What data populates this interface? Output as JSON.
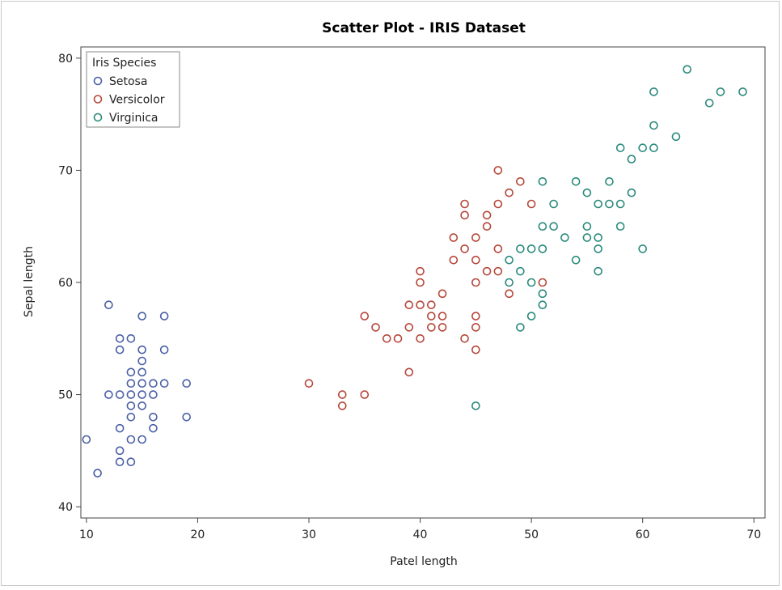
{
  "chart_data": {
    "type": "scatter",
    "title": "Scatter Plot - IRIS Dataset",
    "xlabel": "Patel length",
    "ylabel": "Sepal length",
    "xlim": [
      9.5,
      71
    ],
    "ylim": [
      39,
      81
    ],
    "xticks": [
      10,
      20,
      30,
      40,
      50,
      60,
      70
    ],
    "yticks": [
      40,
      50,
      60,
      70,
      80
    ],
    "grid": false,
    "legend": {
      "title": "Iris Species",
      "placement": "top-left"
    },
    "series": [
      {
        "name": "Setosa",
        "color": "#4a5fa5",
        "points": [
          [
            10,
            46
          ],
          [
            11,
            43
          ],
          [
            12,
            58
          ],
          [
            12,
            50
          ],
          [
            13,
            55
          ],
          [
            13,
            54
          ],
          [
            13,
            50
          ],
          [
            13,
            47
          ],
          [
            13,
            45
          ],
          [
            13,
            44
          ],
          [
            14,
            55
          ],
          [
            14,
            52
          ],
          [
            14,
            51
          ],
          [
            14,
            50
          ],
          [
            14,
            49
          ],
          [
            14,
            48
          ],
          [
            14,
            46
          ],
          [
            14,
            44
          ],
          [
            15,
            57
          ],
          [
            15,
            54
          ],
          [
            15,
            53
          ],
          [
            15,
            52
          ],
          [
            15,
            51
          ],
          [
            15,
            50
          ],
          [
            15,
            49
          ],
          [
            15,
            46
          ],
          [
            16,
            51
          ],
          [
            16,
            50
          ],
          [
            16,
            48
          ],
          [
            16,
            47
          ],
          [
            17,
            57
          ],
          [
            17,
            54
          ],
          [
            17,
            51
          ],
          [
            19,
            51
          ],
          [
            19,
            48
          ]
        ]
      },
      {
        "name": "Versicolor",
        "color": "#b5473a",
        "points": [
          [
            30,
            51
          ],
          [
            33,
            50
          ],
          [
            33,
            49
          ],
          [
            35,
            57
          ],
          [
            35,
            50
          ],
          [
            36,
            56
          ],
          [
            37,
            55
          ],
          [
            38,
            55
          ],
          [
            39,
            58
          ],
          [
            39,
            56
          ],
          [
            39,
            52
          ],
          [
            40,
            61
          ],
          [
            40,
            60
          ],
          [
            40,
            58
          ],
          [
            40,
            55
          ],
          [
            41,
            58
          ],
          [
            41,
            57
          ],
          [
            41,
            56
          ],
          [
            42,
            59
          ],
          [
            42,
            57
          ],
          [
            42,
            56
          ],
          [
            43,
            64
          ],
          [
            43,
            62
          ],
          [
            44,
            67
          ],
          [
            44,
            66
          ],
          [
            44,
            63
          ],
          [
            44,
            55
          ],
          [
            45,
            64
          ],
          [
            45,
            62
          ],
          [
            45,
            60
          ],
          [
            45,
            57
          ],
          [
            45,
            56
          ],
          [
            45,
            54
          ],
          [
            46,
            66
          ],
          [
            46,
            65
          ],
          [
            46,
            61
          ],
          [
            47,
            70
          ],
          [
            47,
            67
          ],
          [
            47,
            63
          ],
          [
            47,
            61
          ],
          [
            48,
            68
          ],
          [
            48,
            59
          ],
          [
            49,
            69
          ],
          [
            50,
            67
          ],
          [
            51,
            60
          ]
        ]
      },
      {
        "name": "Virginica",
        "color": "#2a8a7c",
        "points": [
          [
            45,
            49
          ],
          [
            48,
            62
          ],
          [
            48,
            60
          ],
          [
            49,
            63
          ],
          [
            49,
            61
          ],
          [
            49,
            56
          ],
          [
            50,
            63
          ],
          [
            50,
            60
          ],
          [
            50,
            57
          ],
          [
            51,
            69
          ],
          [
            51,
            65
          ],
          [
            51,
            63
          ],
          [
            51,
            59
          ],
          [
            51,
            58
          ],
          [
            52,
            67
          ],
          [
            52,
            65
          ],
          [
            53,
            64
          ],
          [
            54,
            69
          ],
          [
            54,
            62
          ],
          [
            55,
            68
          ],
          [
            55,
            65
          ],
          [
            55,
            64
          ],
          [
            56,
            67
          ],
          [
            56,
            64
          ],
          [
            56,
            63
          ],
          [
            56,
            61
          ],
          [
            57,
            69
          ],
          [
            57,
            67
          ],
          [
            58,
            72
          ],
          [
            58,
            67
          ],
          [
            58,
            65
          ],
          [
            59,
            71
          ],
          [
            59,
            68
          ],
          [
            60,
            72
          ],
          [
            60,
            63
          ],
          [
            61,
            77
          ],
          [
            61,
            74
          ],
          [
            61,
            72
          ],
          [
            63,
            73
          ],
          [
            64,
            79
          ],
          [
            66,
            76
          ],
          [
            67,
            77
          ],
          [
            69,
            77
          ]
        ]
      }
    ]
  }
}
